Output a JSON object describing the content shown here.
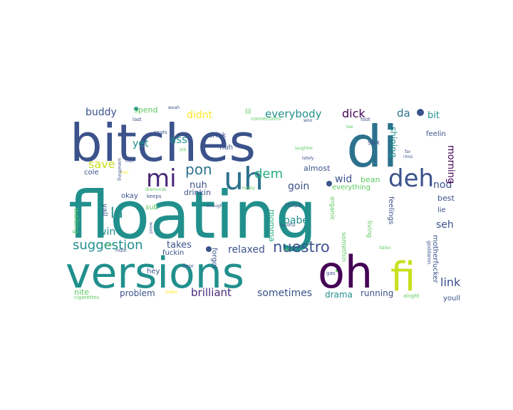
{
  "colors": {
    "background": "#ffffff",
    "palette_viridis": [
      "#440154",
      "#3b528b",
      "#21908d",
      "#5dc962",
      "#fde725"
    ]
  },
  "words": [
    {
      "text": "floating",
      "color": "#21908d"
    },
    {
      "text": "bitches",
      "color": "#3b528b"
    },
    {
      "text": "versions",
      "color": "#21908d"
    },
    {
      "text": "oh",
      "color": "#440154"
    },
    {
      "text": "di",
      "color": "#2c728e"
    },
    {
      "text": "fi",
      "color": "#c8e020"
    },
    {
      "text": "uh",
      "color": "#2c728e"
    },
    {
      "text": "deh",
      "color": "#3b528b"
    },
    {
      "text": "mi",
      "color": "#482878"
    },
    {
      "text": "suggestion",
      "color": "#21908d"
    },
    {
      "text": "nuestro",
      "color": "#3b528b"
    },
    {
      "text": "la",
      "color": "#21908d"
    },
    {
      "text": "pon",
      "color": "#2c728e"
    },
    {
      "text": "dem",
      "color": "#27ad81"
    },
    {
      "text": "brilliant",
      "color": "#482878"
    },
    {
      "text": "sometimes",
      "color": "#3b528b"
    },
    {
      "text": "relaxed",
      "color": "#3b528b"
    },
    {
      "text": "link",
      "color": "#3b528b"
    },
    {
      "text": "everybody",
      "color": "#21908d"
    },
    {
      "text": "dick",
      "color": "#440154"
    },
    {
      "text": "da",
      "color": "#2c728e"
    },
    {
      "text": "bit",
      "color": "#21908d"
    },
    {
      "text": "buddy",
      "color": "#3b528b"
    },
    {
      "text": "didnt",
      "color": "#fde725"
    },
    {
      "text": "spend",
      "color": "#5dc962"
    },
    {
      "text": "ass",
      "color": "#21908d"
    },
    {
      "text": "save",
      "color": "#c8e020"
    },
    {
      "text": "yet",
      "color": "#21908d"
    },
    {
      "text": "win",
      "color": "#21908d"
    },
    {
      "text": "babe",
      "color": "#21908d"
    },
    {
      "text": "seh",
      "color": "#3b528b"
    },
    {
      "text": "nod",
      "color": "#3b528b"
    },
    {
      "text": "wid",
      "color": "#3b528b"
    },
    {
      "text": "goin",
      "color": "#3b528b"
    },
    {
      "text": "nuh",
      "color": "#3b528b"
    },
    {
      "text": "drinkin",
      "color": "#3b528b"
    },
    {
      "text": "morning",
      "color": "#440154"
    },
    {
      "text": "shining",
      "color": "#21908d"
    },
    {
      "text": "momma",
      "color": "#27ad81"
    },
    {
      "text": "takes",
      "color": "#3b528b"
    },
    {
      "text": "problem",
      "color": "#3b528b"
    },
    {
      "text": "drama",
      "color": "#21908d"
    },
    {
      "text": "running",
      "color": "#3b528b"
    },
    {
      "text": "nite",
      "color": "#5dc962"
    },
    {
      "text": "hey",
      "color": "#3b528b"
    },
    {
      "text": "fuckin",
      "color": "#3b528b"
    },
    {
      "text": "forgot",
      "color": "#3b528b"
    },
    {
      "text": "okay",
      "color": "#3b528b"
    },
    {
      "text": "yall",
      "color": "#3b528b"
    },
    {
      "text": "waiting",
      "color": "#5dc962"
    },
    {
      "text": "cole",
      "color": "#3b528b"
    },
    {
      "text": "sub",
      "color": "#5dc962"
    },
    {
      "text": "almost",
      "color": "#3b528b"
    },
    {
      "text": "everything",
      "color": "#5dc962"
    },
    {
      "text": "bean",
      "color": "#5dc962"
    },
    {
      "text": "miss",
      "color": "#3b528b"
    },
    {
      "text": "organic",
      "color": "#5dc962"
    },
    {
      "text": "feelings",
      "color": "#3b528b"
    },
    {
      "text": "best",
      "color": "#3b528b"
    },
    {
      "text": "lie",
      "color": "#3b528b"
    },
    {
      "text": "youll",
      "color": "#3b528b"
    },
    {
      "text": "motherfucker",
      "color": "#3b528b"
    },
    {
      "text": "feelin",
      "color": "#3b528b"
    },
    {
      "text": "sex",
      "color": "#3b528b"
    },
    {
      "text": "huh",
      "color": "#3b528b"
    },
    {
      "text": "drink",
      "color": "#3b528b"
    },
    {
      "text": "lil",
      "color": "#5dc962"
    },
    {
      "text": "somethin",
      "color": "#5dc962"
    },
    {
      "text": "living",
      "color": "#5dc962"
    },
    {
      "text": "fallen",
      "color": "#5dc962"
    },
    {
      "text": "goddamn",
      "color": "#3b528b"
    },
    {
      "text": "alright",
      "color": "#5dc962"
    },
    {
      "text": "gas",
      "color": "#3b528b"
    },
    {
      "text": "cigarettes",
      "color": "#5dc962"
    },
    {
      "text": "baller",
      "color": "#fde725"
    },
    {
      "text": "floor",
      "color": "#3b528b"
    },
    {
      "text": "ridin",
      "color": "#3b528b"
    },
    {
      "text": "chill",
      "color": "#5dc962"
    },
    {
      "text": "keeps",
      "color": "#3b528b"
    },
    {
      "text": "diamonds",
      "color": "#5dc962"
    },
    {
      "text": "icon",
      "color": "#fde725"
    },
    {
      "text": "job",
      "color": "#5dc962"
    },
    {
      "text": "seats",
      "color": "#3b528b"
    },
    {
      "text": "riot",
      "color": "#3b528b"
    },
    {
      "text": "something",
      "color": "#3b528b"
    },
    {
      "text": "last",
      "color": "#3b528b"
    },
    {
      "text": "woah",
      "color": "#3b528b"
    },
    {
      "text": "connections",
      "color": "#5dc962"
    },
    {
      "text": "woo",
      "color": "#3b528b"
    },
    {
      "text": "foot",
      "color": "#3b528b"
    },
    {
      "text": "tee",
      "color": "#5dc962"
    },
    {
      "text": "laughter",
      "color": "#5dc962"
    },
    {
      "text": "lately",
      "color": "#3b528b"
    },
    {
      "text": "far",
      "color": "#3b528b"
    },
    {
      "text": "rims",
      "color": "#3b528b"
    },
    {
      "text": "lonely",
      "color": "#5dc962"
    },
    {
      "text": "enough",
      "color": "#3b528b"
    },
    {
      "text": "wood",
      "color": "#3b528b"
    },
    {
      "text": "handful",
      "color": "#3b528b"
    },
    {
      "text": "cat",
      "color": "#5dc962"
    }
  ]
}
